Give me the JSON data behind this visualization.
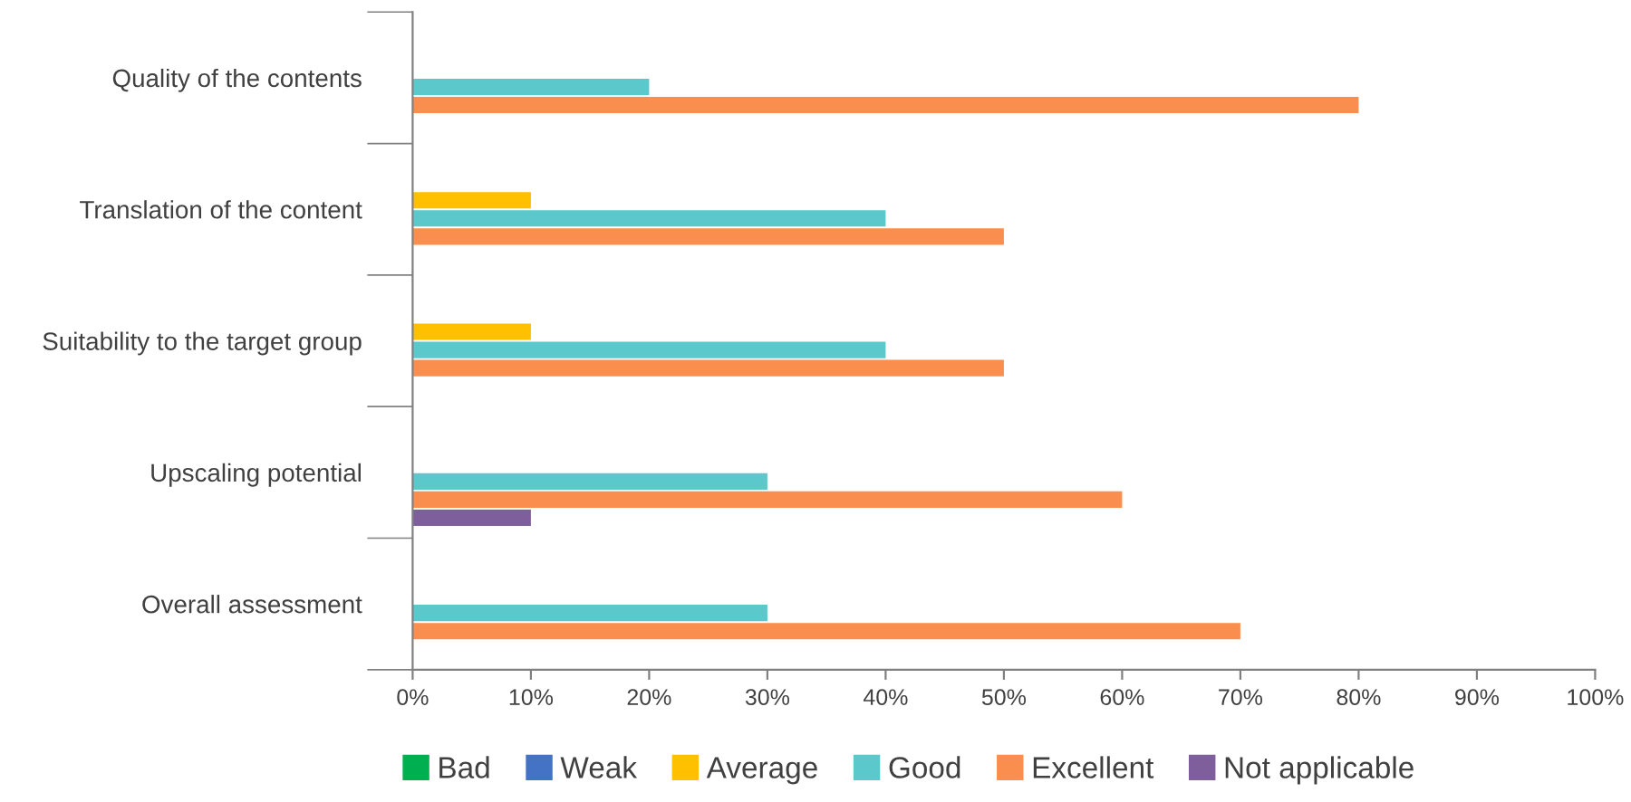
{
  "chart_data": {
    "type": "bar",
    "orientation": "horizontal",
    "categories": [
      "Quality of the contents",
      "Translation of the content",
      "Suitability to the target group",
      "Upscaling potential",
      "Overall assessment"
    ],
    "series": [
      {
        "name": "Bad",
        "color": "#00b050",
        "values": [
          0,
          0,
          0,
          0,
          0
        ]
      },
      {
        "name": "Weak",
        "color": "#4472c4",
        "values": [
          0,
          0,
          0,
          0,
          0
        ]
      },
      {
        "name": "Average",
        "color": "#ffc000",
        "values": [
          0,
          10,
          10,
          0,
          0
        ]
      },
      {
        "name": "Good",
        "color": "#5bc8cc",
        "values": [
          20,
          40,
          40,
          30,
          30
        ]
      },
      {
        "name": "Excellent",
        "color": "#f98e4f",
        "values": [
          80,
          50,
          50,
          60,
          70
        ]
      },
      {
        "name": "Not applicable",
        "color": "#7e5f9c",
        "values": [
          0,
          0,
          0,
          10,
          0
        ]
      }
    ],
    "xlim": [
      0,
      100
    ],
    "xticks": [
      {
        "value": 0,
        "label": "0%"
      },
      {
        "value": 10,
        "label": "10%"
      },
      {
        "value": 20,
        "label": "20%"
      },
      {
        "value": 30,
        "label": "30%"
      },
      {
        "value": 40,
        "label": "40%"
      },
      {
        "value": 50,
        "label": "50%"
      },
      {
        "value": 60,
        "label": "60%"
      },
      {
        "value": 70,
        "label": "70%"
      },
      {
        "value": 80,
        "label": "80%"
      },
      {
        "value": 90,
        "label": "90%"
      },
      {
        "value": 100,
        "label": "100%"
      }
    ],
    "grid": false,
    "legend": "bottom"
  }
}
